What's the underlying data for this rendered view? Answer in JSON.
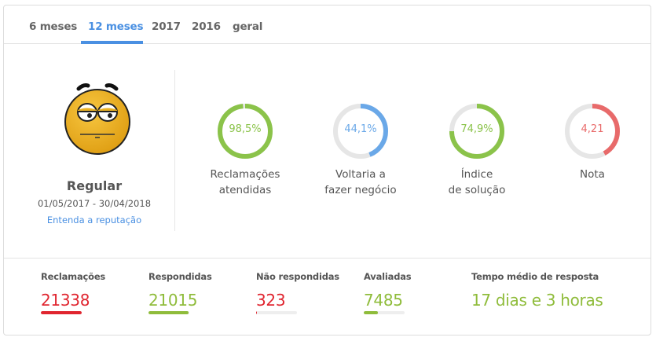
{
  "tabs": [
    {
      "label": "6 meses",
      "active": false
    },
    {
      "label": "12 meses",
      "active": true
    },
    {
      "label": "2017",
      "active": false
    },
    {
      "label": "2016",
      "active": false
    },
    {
      "label": "geral",
      "active": false
    }
  ],
  "reputation": {
    "icon": "neutral-face-icon",
    "title": "Regular",
    "period": "01/05/2017 - 30/04/2018",
    "link": "Entenda a reputação"
  },
  "metrics": [
    {
      "value": "98,5%",
      "percent": 98.5,
      "label_line1": "Reclamações",
      "label_line2": "atendidas",
      "color": "#8bc34a"
    },
    {
      "value": "44,1%",
      "percent": 44.1,
      "label_line1": "Voltaria a",
      "label_line2": "fazer negócio",
      "color": "#6aa8e8"
    },
    {
      "value": "74,9%",
      "percent": 74.9,
      "label_line1": "Índice",
      "label_line2": "de solução",
      "color": "#8bc34a"
    },
    {
      "value": "4,21",
      "percent": 42.1,
      "label_line1": "Nota",
      "label_line2": "",
      "color": "#e86a6a"
    }
  ],
  "stats": [
    {
      "label": "Reclamações",
      "value": "21338",
      "color": "#e0252f",
      "bar_percent": 100,
      "bar_color": "#e0252f"
    },
    {
      "label": "Respondidas",
      "value": "21015",
      "color": "#8fbc3b",
      "bar_percent": 98.5,
      "bar_color": "#8fbc3b"
    },
    {
      "label": "Não respondidas",
      "value": "323",
      "color": "#e0252f",
      "bar_percent": 1.5,
      "bar_color": "#e0252f"
    },
    {
      "label": "Avaliadas",
      "value": "7485",
      "color": "#8fbc3b",
      "bar_percent": 35,
      "bar_color": "#8fbc3b"
    },
    {
      "label": "Tempo médio de resposta",
      "value": "17 dias e 3 horas",
      "color": "#8fbc3b"
    }
  ],
  "colors": {
    "accent": "#4a90e2",
    "track": "#e6e6e6"
  }
}
